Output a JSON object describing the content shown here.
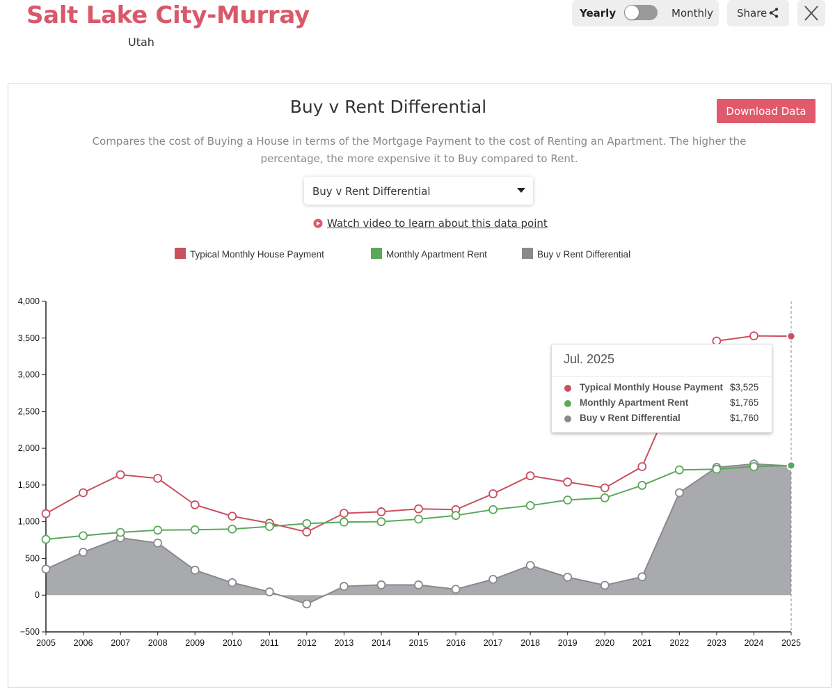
{
  "header": {
    "title": "Salt Lake City-Murray",
    "subtitle": "Utah",
    "toggle": {
      "left_label": "Yearly",
      "right_label": "Monthly",
      "selected": "Yearly"
    },
    "share_label": "Share",
    "icons": {
      "share": "share-icon",
      "close": "close-icon"
    }
  },
  "panel": {
    "title": "Buy v Rent Differential",
    "download_label": "Download Data",
    "description": "Compares the cost of Buying a House in terms of the Mortgage Payment to the cost of Renting an Apartment. The higher the percentage, the more expensive it to Buy compared to Rent.",
    "select_value": "Buy v Rent Differential",
    "video_link": "Watch video to learn about this data point"
  },
  "legend": [
    {
      "label": "Typical Monthly House Payment",
      "color": "#c9505f"
    },
    {
      "label": "Monthly Apartment Rent",
      "color": "#5aa85a"
    },
    {
      "label": "Buy v Rent Differential",
      "color": "#8a8a8e"
    }
  ],
  "tooltip": {
    "date": "Jul. 2025",
    "rows": [
      {
        "label": "Typical Monthly House Payment",
        "value": "$3,525",
        "color": "#c9505f"
      },
      {
        "label": "Monthly Apartment Rent",
        "value": "$1,765",
        "color": "#5aa85a"
      },
      {
        "label": "Buy v Rent Differential",
        "value": "$1,760",
        "color": "#8a8a8e"
      }
    ]
  },
  "chart_data": {
    "type": "line",
    "title": "Buy v Rent Differential",
    "x": [
      "2005",
      "2006",
      "2007",
      "2008",
      "2009",
      "2010",
      "2011",
      "2012",
      "2013",
      "2014",
      "2015",
      "2016",
      "2017",
      "2018",
      "2019",
      "2020",
      "2021",
      "2022",
      "2023",
      "2024",
      "2025"
    ],
    "ylim": [
      -500,
      4000
    ],
    "yticks": [
      -500,
      0,
      500,
      1000,
      1500,
      2000,
      2500,
      3000,
      3500,
      4000
    ],
    "ytick_labels": [
      "−500",
      "0",
      "500",
      "1,000",
      "1,500",
      "2,000",
      "2,500",
      "3,000",
      "3,500",
      "4,000"
    ],
    "legend_position": "top",
    "grid": false,
    "series": [
      {
        "name": "Typical Monthly House Payment",
        "type": "line",
        "color": "#c9505f",
        "values": [
          1110,
          1395,
          1640,
          1590,
          1230,
          1075,
          980,
          860,
          1115,
          1135,
          1175,
          1165,
          1380,
          1625,
          1540,
          1460,
          1750,
          2910,
          3460,
          3530,
          3525
        ]
      },
      {
        "name": "Monthly Apartment Rent",
        "type": "line",
        "color": "#5aa85a",
        "values": [
          760,
          810,
          855,
          885,
          890,
          900,
          935,
          975,
          995,
          1000,
          1035,
          1085,
          1165,
          1220,
          1295,
          1325,
          1495,
          1705,
          1715,
          1750,
          1765
        ]
      },
      {
        "name": "Buy v Rent Differential",
        "type": "area",
        "color": "#8a8a8e",
        "values": [
          355,
          585,
          780,
          710,
          340,
          170,
          45,
          -120,
          120,
          140,
          140,
          80,
          215,
          405,
          245,
          135,
          250,
          1395,
          1740,
          1785,
          1760
        ]
      }
    ],
    "highlight": {
      "x": "2025"
    }
  }
}
